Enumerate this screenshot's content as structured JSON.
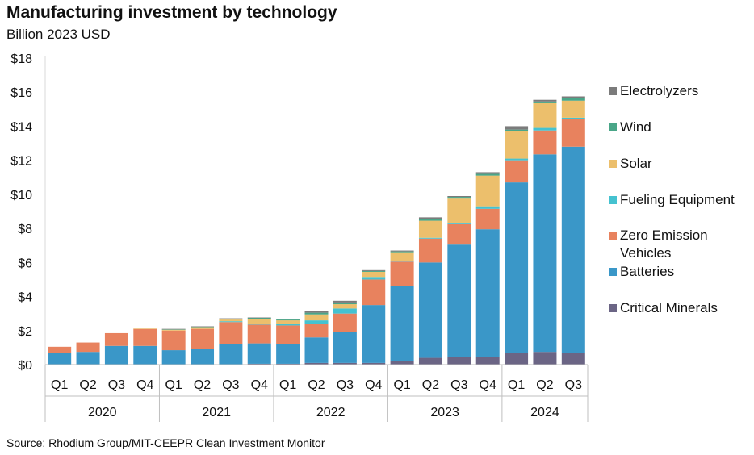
{
  "title": "Manufacturing investment by technology",
  "subtitle": "Billion 2023 USD",
  "source": "Source: Rhodium Group/MIT-CEEPR Clean Investment Monitor",
  "chart_data": {
    "type": "bar",
    "stacked": true,
    "ylim": [
      0,
      18
    ],
    "yticks": [
      0,
      2,
      4,
      6,
      8,
      10,
      12,
      14,
      16,
      18
    ],
    "ytick_labels": [
      "$0",
      "$2",
      "$4",
      "$6",
      "$8",
      "$10",
      "$12",
      "$14",
      "$16",
      "$18"
    ],
    "categories": [
      "Q1",
      "Q2",
      "Q3",
      "Q4",
      "Q1",
      "Q2",
      "Q3",
      "Q4",
      "Q1",
      "Q2",
      "Q3",
      "Q4",
      "Q1",
      "Q2",
      "Q3",
      "Q4",
      "Q1",
      "Q2",
      "Q3"
    ],
    "groups": [
      {
        "label": "2020",
        "count": 4
      },
      {
        "label": "2021",
        "count": 4
      },
      {
        "label": "2022",
        "count": 4
      },
      {
        "label": "2023",
        "count": 4
      },
      {
        "label": "2024",
        "count": 3
      }
    ],
    "legend_position": "right",
    "grid": false,
    "series": [
      {
        "name": "Critical Minerals",
        "color": "#6b6585",
        "values": [
          0,
          0,
          0,
          0,
          0,
          0,
          0,
          0.05,
          0.05,
          0.1,
          0.1,
          0.1,
          0.2,
          0.4,
          0.45,
          0.45,
          0.7,
          0.75,
          0.7
        ]
      },
      {
        "name": "Batteries",
        "color": "#3a97c8",
        "values": [
          0.7,
          0.75,
          1.1,
          1.1,
          0.85,
          0.9,
          1.2,
          1.2,
          1.15,
          1.5,
          1.8,
          3.4,
          4.4,
          5.6,
          6.6,
          7.5,
          10.0,
          11.6,
          12.1
        ]
      },
      {
        "name": "Zero Emission Vehicles",
        "color": "#e8825e",
        "values": [
          0.35,
          0.55,
          0.75,
          1.0,
          1.15,
          1.2,
          1.3,
          1.1,
          1.1,
          0.8,
          1.1,
          1.5,
          1.45,
          1.4,
          1.2,
          1.2,
          1.3,
          1.4,
          1.6
        ]
      },
      {
        "name": "Fueling Equipment",
        "color": "#45c2d0",
        "values": [
          0,
          0,
          0,
          0,
          0,
          0,
          0.05,
          0.05,
          0.1,
          0.2,
          0.3,
          0.15,
          0.05,
          0.05,
          0.05,
          0.15,
          0.1,
          0.15,
          0.1
        ]
      },
      {
        "name": "Solar",
        "color": "#ecbf6c",
        "values": [
          0,
          0,
          0,
          0.02,
          0.05,
          0.1,
          0.1,
          0.3,
          0.2,
          0.35,
          0.25,
          0.3,
          0.5,
          1.0,
          1.45,
          1.8,
          1.6,
          1.45,
          1.0
        ]
      },
      {
        "name": "Wind",
        "color": "#4aa688",
        "values": [
          0,
          0,
          0,
          0,
          0.03,
          0.03,
          0.05,
          0.05,
          0.05,
          0.1,
          0.1,
          0.05,
          0.05,
          0.1,
          0.1,
          0.1,
          0.1,
          0.1,
          0.15
        ]
      },
      {
        "name": "Electrolyzers",
        "color": "#7b7b7b",
        "values": [
          0,
          0,
          0,
          0,
          0.02,
          0.02,
          0.02,
          0.02,
          0.05,
          0.1,
          0.1,
          0.05,
          0.05,
          0.1,
          0.05,
          0.1,
          0.2,
          0.1,
          0.1
        ]
      }
    ],
    "legend_order": [
      "Electrolyzers",
      "Wind",
      "Solar",
      "Fueling Equipment",
      "Zero Emission Vehicles",
      "Batteries",
      "Critical Minerals"
    ]
  }
}
